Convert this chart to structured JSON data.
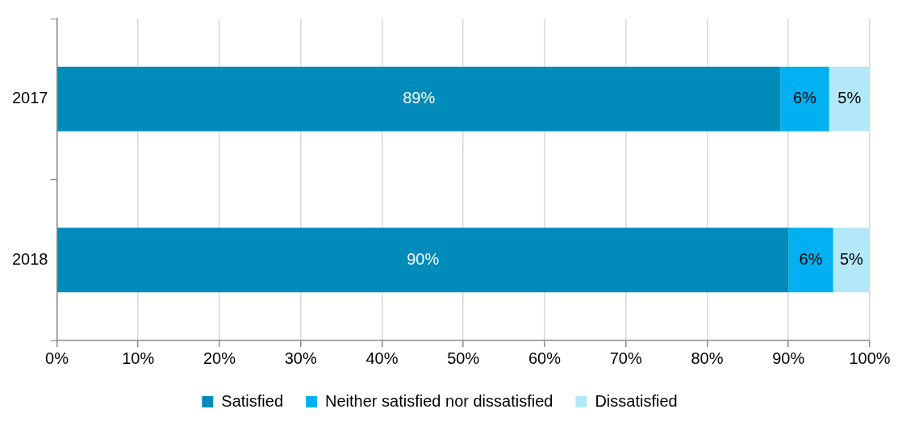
{
  "chart_data": {
    "type": "bar",
    "orientation": "horizontal",
    "stacked": true,
    "categories": [
      "2017",
      "2018"
    ],
    "series": [
      {
        "name": "Satisfied",
        "color": "#008bbb",
        "values": [
          89,
          90
        ],
        "value_labels": [
          "89%",
          "90%"
        ]
      },
      {
        "name": "Neither satisfied nor dissatisfied",
        "color": "#00b0f0",
        "values": [
          6,
          5.5
        ],
        "value_labels": [
          "6%",
          "6%"
        ]
      },
      {
        "name": "Dissatisfied",
        "color": "#b3e8f9",
        "values": [
          5,
          4.5
        ],
        "value_labels": [
          "5%",
          "5%"
        ]
      }
    ],
    "xlim": [
      0,
      100
    ],
    "xticks": [
      {
        "value": 0,
        "label": "0%"
      },
      {
        "value": 10,
        "label": "10%"
      },
      {
        "value": 20,
        "label": "20%"
      },
      {
        "value": 30,
        "label": "30%"
      },
      {
        "value": 40,
        "label": "40%"
      },
      {
        "value": 50,
        "label": "50%"
      },
      {
        "value": 60,
        "label": "60%"
      },
      {
        "value": 70,
        "label": "70%"
      },
      {
        "value": 80,
        "label": "80%"
      },
      {
        "value": 90,
        "label": "90%"
      },
      {
        "value": 100,
        "label": "100%"
      }
    ],
    "grid": "x",
    "legend": "bottom"
  }
}
